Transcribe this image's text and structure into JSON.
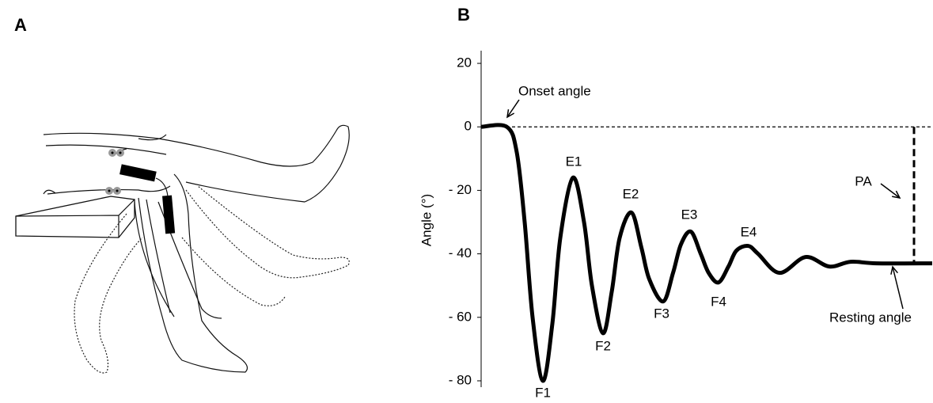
{
  "panels": {
    "a": "A",
    "b": "B"
  },
  "chart_data": {
    "type": "line",
    "y_label": "Angle (°)",
    "x": [
      0,
      6.5,
      9,
      11,
      13,
      15.6,
      18,
      20,
      23.2,
      26,
      28,
      30.8,
      33,
      35,
      38,
      40.5,
      42.5,
      46,
      48.5,
      50.5,
      53,
      55.5,
      57.5,
      60,
      62.5,
      64.5,
      67.5,
      70,
      75.4,
      82,
      88,
      93.4,
      100,
      114
    ],
    "series": [
      {
        "color": "#000000",
        "values": [
          0,
          0,
          -8,
          -30,
          -60,
          -80,
          -62,
          -35,
          -16,
          -30,
          -50,
          -65,
          -52,
          -35,
          -27,
          -38,
          -48,
          -55,
          -46,
          -37,
          -33,
          -40,
          -46,
          -49,
          -44,
          -39,
          -37.5,
          -40,
          -46,
          -41,
          -44,
          -42.5,
          -43,
          -43
        ]
      }
    ],
    "xlim": [
      0,
      114
    ],
    "ylim": [
      -82,
      24
    ],
    "yticks": [
      20,
      0,
      {
        "value": -20,
        "label": "- 20"
      },
      {
        "value": -40,
        "label": "- 40"
      },
      {
        "value": -60,
        "label": "- 60"
      },
      {
        "value": -80,
        "label": "- 80"
      }
    ],
    "reference_line": 0,
    "pa_line": {
      "x": 109.4,
      "y": [
        0,
        -43
      ]
    },
    "annotations": [
      "Onset angle",
      "E1",
      "E2",
      "E3",
      "E4",
      "F1",
      "F2",
      "F3",
      "F4",
      "PA",
      "Resting angle"
    ]
  }
}
